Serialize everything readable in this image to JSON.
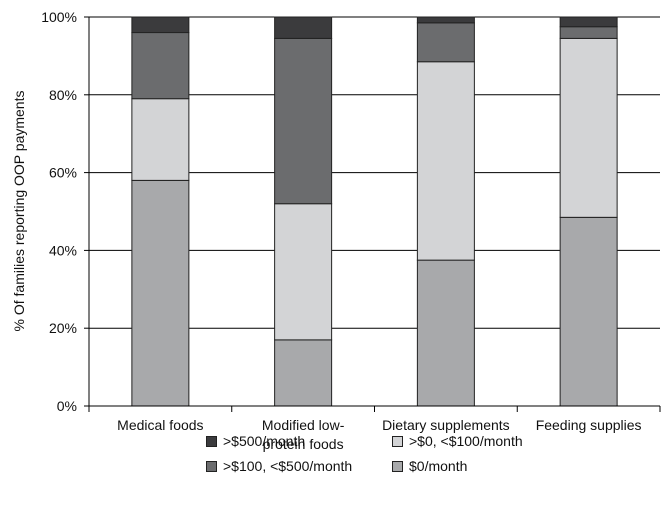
{
  "chart_data": {
    "type": "bar",
    "stacked": true,
    "ylabel": "% Of families reporting OOP payments",
    "xlabel": "",
    "ylim": [
      0,
      100
    ],
    "yticks": [
      "0%",
      "20%",
      "40%",
      "60%",
      "80%",
      "100%"
    ],
    "grid": true,
    "legend_position": "bottom",
    "categories": [
      [
        "Medical foods"
      ],
      [
        "Modified low-",
        "protein foods"
      ],
      [
        "Dietary supplements"
      ],
      [
        "Feeding supplies"
      ]
    ],
    "series": [
      {
        "name": "$0/month",
        "color": "#a8a9ab",
        "values": [
          58,
          17,
          37.5,
          48.5
        ]
      },
      {
        "name": ">$0, <$100/month",
        "color": "#d3d4d6",
        "values": [
          21,
          35,
          51,
          46
        ]
      },
      {
        "name": ">$100, <$500/month",
        "color": "#6b6c6e",
        "values": [
          17,
          42.5,
          10,
          3
        ]
      },
      {
        "name": ">$500/month",
        "color": "#3b3b3d",
        "values": [
          4,
          5.5,
          1.5,
          2.5
        ]
      }
    ]
  },
  "legend": [
    {
      "label": ">$500/month",
      "color": "#3b3b3d"
    },
    {
      "label": ">$0, <$100/month",
      "color": "#d3d4d6"
    },
    {
      "label": ">$100, <$500/month",
      "color": "#6b6c6e"
    },
    {
      "label": "$0/month",
      "color": "#a8a9ab"
    }
  ]
}
